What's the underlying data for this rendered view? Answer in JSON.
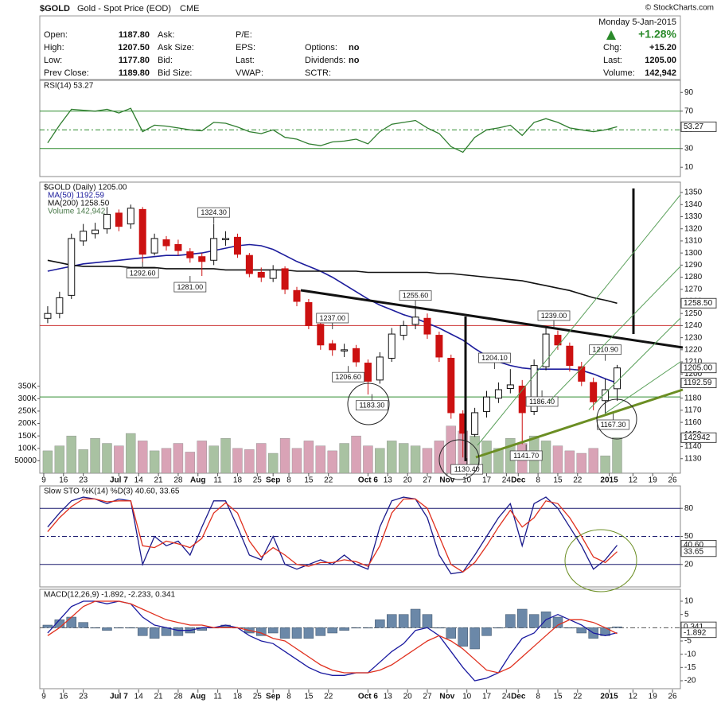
{
  "header": {
    "symbol": "$GOLD",
    "name": "Gold - Spot Price (EOD)",
    "exchange": "CME",
    "copyright": "© StockCharts.com",
    "date": "Monday  5-Jan-2015",
    "change_pct": "+1.28%",
    "quote": [
      {
        "label": "Open:",
        "value": "1187.80"
      },
      {
        "label": "High:",
        "value": "1207.50"
      },
      {
        "label": "Low:",
        "value": "1177.80"
      },
      {
        "label": "Prev Close:",
        "value": "1189.80"
      }
    ],
    "labels2": [
      "Ask:",
      "Ask Size:",
      "Bid:",
      "Bid Size:"
    ],
    "labels3": [
      "P/E:",
      "EPS:",
      "Last:",
      "VWAP:"
    ],
    "flags": [
      {
        "label": "Options:",
        "value": "no"
      },
      {
        "label": "Dividends:",
        "value": "no"
      },
      {
        "label": "SCTR:"
      }
    ],
    "summary": [
      {
        "label": "Chg:",
        "value": "+15.20"
      },
      {
        "label": "Last:",
        "value": "1205.00"
      },
      {
        "label": "Volume:",
        "value": "142,942"
      }
    ]
  },
  "chart_data": [
    {
      "type": "line",
      "title": "RSI(14) 53.27",
      "ylim": [
        0,
        103
      ],
      "yticks": [
        10,
        30,
        50,
        70,
        90
      ],
      "hlines": [
        {
          "value": 70,
          "color": "#2e8b2e"
        },
        {
          "value": 30,
          "color": "#2e8b2e"
        },
        {
          "value": 50,
          "color": "#2e8b2e",
          "dash": true
        }
      ],
      "series": [
        {
          "color": "#2e7d2e",
          "values": [
            36,
            55,
            72,
            71,
            70,
            72,
            68,
            73,
            48,
            55,
            54,
            52,
            50,
            49,
            58,
            57,
            53,
            48,
            46,
            50,
            42,
            40,
            35,
            33,
            37,
            38,
            40,
            35,
            48,
            56,
            58,
            60,
            52,
            46,
            32,
            26,
            42,
            50,
            52,
            55,
            44,
            58,
            62,
            58,
            52,
            50,
            48,
            50,
            53.27
          ]
        }
      ],
      "last_labels": [
        {
          "value": 53.27,
          "label": "53.27"
        }
      ]
    },
    {
      "type": "candlestick",
      "title": "$GOLD (Daily) 1205.00",
      "volume_name": "Volume 142,942",
      "xlim": [
        -1,
        161
      ],
      "xticks": [
        {
          "value": 0,
          "label": "9"
        },
        {
          "value": 5,
          "label": "16"
        },
        {
          "value": 10,
          "label": "23"
        },
        {
          "value": 19,
          "label": "Jul 7"
        },
        {
          "value": 24,
          "label": "14"
        },
        {
          "value": 29,
          "label": "21"
        },
        {
          "value": 34,
          "label": "28"
        },
        {
          "value": 39,
          "label": "Aug"
        },
        {
          "value": 44,
          "label": "11"
        },
        {
          "value": 49,
          "label": "18"
        },
        {
          "value": 54,
          "label": "25"
        },
        {
          "value": 58,
          "label": "Sep"
        },
        {
          "value": 62,
          "label": "8"
        },
        {
          "value": 67,
          "label": "15"
        },
        {
          "value": 72,
          "label": "22"
        },
        {
          "value": 82,
          "label": "Oct 6"
        },
        {
          "value": 87,
          "label": "13"
        },
        {
          "value": 92,
          "label": "20"
        },
        {
          "value": 97,
          "label": "27"
        },
        {
          "value": 102,
          "label": "Nov"
        },
        {
          "value": 107,
          "label": "10"
        },
        {
          "value": 112,
          "label": "17"
        },
        {
          "value": 117,
          "label": "24"
        },
        {
          "value": 120,
          "label": "Dec"
        },
        {
          "value": 125,
          "label": "8"
        },
        {
          "value": 130,
          "label": "15"
        },
        {
          "value": 135,
          "label": "22"
        },
        {
          "value": 143,
          "label": "2015"
        },
        {
          "value": 149,
          "label": "12"
        },
        {
          "value": 154,
          "label": "19"
        },
        {
          "value": 159,
          "label": "26"
        }
      ],
      "ylim": [
        1118,
        1358.6
      ],
      "yticks": [
        1130,
        1140,
        1150,
        1160,
        1170,
        1180,
        1190,
        1200,
        1210,
        1220,
        1230,
        1240,
        1250,
        1260,
        1270,
        1280,
        1290,
        1300,
        1310,
        1320,
        1330,
        1340,
        1350
      ],
      "x": [
        1,
        4,
        7,
        10,
        13,
        16,
        19,
        22,
        25,
        28,
        31,
        34,
        37,
        40,
        43,
        46,
        49,
        52,
        55,
        58,
        61,
        64,
        67,
        70,
        73,
        76,
        79,
        82,
        85,
        88,
        91,
        94,
        97,
        100,
        103,
        106,
        109,
        112,
        115,
        118,
        121,
        124,
        127,
        130,
        133,
        136,
        139,
        142,
        145
      ],
      "open": [
        1246,
        1250,
        1265,
        1310,
        1316,
        1320,
        1333,
        1324,
        1336,
        1300,
        1311,
        1307,
        1301,
        1297,
        1294,
        1311,
        1313,
        1298,
        1284,
        1279,
        1287,
        1269,
        1259,
        1241,
        1225,
        1219,
        1221,
        1209,
        1195,
        1213,
        1232,
        1241,
        1246,
        1232,
        1213,
        1167,
        1150,
        1169,
        1180,
        1188,
        1190,
        1169,
        1206,
        1232,
        1223,
        1206,
        1193,
        1178,
        1187.8
      ],
      "high": [
        1256,
        1268,
        1316,
        1324,
        1325,
        1338,
        1336,
        1340,
        1338,
        1316,
        1314,
        1311,
        1304,
        1300,
        1324,
        1318,
        1316,
        1300,
        1288,
        1290,
        1289,
        1272,
        1262,
        1245,
        1228,
        1225,
        1224,
        1212,
        1218,
        1238,
        1244,
        1255,
        1250,
        1235,
        1216,
        1170,
        1172,
        1186,
        1193,
        1204,
        1195,
        1212,
        1239,
        1236,
        1226,
        1210,
        1197,
        1196,
        1207.5
      ],
      "low": [
        1242,
        1246,
        1262,
        1306,
        1312,
        1316,
        1318,
        1320,
        1292,
        1298,
        1302,
        1298,
        1292,
        1281,
        1290,
        1306,
        1296,
        1280,
        1276,
        1276,
        1266,
        1256,
        1237,
        1220,
        1215,
        1214,
        1206,
        1183,
        1192,
        1210,
        1228,
        1237,
        1229,
        1210,
        1163,
        1131,
        1148,
        1164,
        1176,
        1184,
        1142,
        1166,
        1203,
        1220,
        1202,
        1190,
        1170,
        1167,
        1177.8
      ],
      "close": [
        1250,
        1263,
        1312,
        1318,
        1319,
        1332,
        1322,
        1337,
        1299,
        1312,
        1306,
        1302,
        1296,
        1293,
        1312,
        1312,
        1299,
        1283,
        1280,
        1286,
        1270,
        1260,
        1240,
        1224,
        1220,
        1220,
        1210,
        1194,
        1214,
        1233,
        1240,
        1247,
        1233,
        1214,
        1168,
        1151,
        1168,
        1181,
        1187,
        1191,
        1168,
        1207,
        1233,
        1224,
        1207,
        1194,
        1177,
        1187,
        1205
      ],
      "up_color": "#111111",
      "down_color": "#cc1111",
      "volume": [
        90000,
        110000,
        150000,
        95000,
        140000,
        120000,
        110000,
        160000,
        130000,
        90000,
        100000,
        120000,
        85000,
        130000,
        110000,
        140000,
        100000,
        95000,
        120000,
        80000,
        140000,
        100000,
        130000,
        110000,
        90000,
        120000,
        150000,
        110000,
        100000,
        130000,
        120000,
        110000,
        100000,
        130000,
        190000,
        170000,
        150000,
        130000,
        100000,
        140000,
        120000,
        150000,
        130000,
        110000,
        90000,
        80000,
        100000,
        70000,
        142942
      ],
      "vlim": [
        0,
        1172000
      ],
      "vticks": [
        50000,
        {
          "value": 100000,
          "label": "100K"
        },
        {
          "value": 150000,
          "label": "150K"
        },
        {
          "value": 200000,
          "label": "200K"
        },
        {
          "value": 250000,
          "label": "250K"
        },
        {
          "value": 300000,
          "label": "300K"
        },
        {
          "value": 350000,
          "label": "350K"
        }
      ],
      "volume_up_color": "#a9c2a2",
      "volume_down_color": "#d9a3b6",
      "series": [
        {
          "name": "MA(50) 1192.59",
          "color": "#1c1c9c",
          "values": [
            1285,
            1287,
            1289,
            1291,
            1292,
            1293,
            1294,
            1295,
            1296,
            1297,
            1298,
            1298,
            1299,
            1300,
            1302,
            1304,
            1306,
            1307,
            1306,
            1303,
            1298,
            1293,
            1289,
            1285,
            1280,
            1274,
            1268,
            1262,
            1257,
            1253,
            1249,
            1246,
            1242,
            1238,
            1233,
            1228,
            1221,
            1215,
            1210,
            1207,
            1205,
            1204,
            1204,
            1204,
            1204,
            1203,
            1200,
            1196,
            1192.59
          ]
        },
        {
          "name": "MA(200) 1258.50",
          "color": "#111111",
          "values": [
            1294,
            1292,
            1290,
            1289,
            1289,
            1289,
            1289,
            1288,
            1288,
            1288,
            1287,
            1287,
            1287,
            1287,
            1287,
            1286,
            1286,
            1286,
            1286,
            1286,
            1286,
            1285,
            1285,
            1285,
            1285,
            1285,
            1285,
            1284,
            1284,
            1284,
            1284,
            1284,
            1284,
            1283,
            1283,
            1282,
            1281,
            1280,
            1279,
            1278,
            1277,
            1275,
            1273,
            1271,
            1269,
            1266,
            1263,
            1261,
            1258.5
          ]
        }
      ],
      "hlines": [
        {
          "value": 1240,
          "color": "#cc3333"
        },
        {
          "value": 1181,
          "color": "#2e8b2e"
        }
      ],
      "annotations": [
        {
          "x": 43,
          "value": 1324.3,
          "label": "1324.30"
        },
        {
          "x": 25,
          "value": 1292.6,
          "label": "1292.60"
        },
        {
          "x": 37,
          "value": 1281,
          "label": "1281.00"
        },
        {
          "x": 73,
          "value": 1237,
          "label": "1237.00"
        },
        {
          "x": 77,
          "value": 1206.6,
          "label": "1206.60"
        },
        {
          "x": 83,
          "value": 1183.3,
          "label": "1183.30"
        },
        {
          "x": 94,
          "value": 1255.6,
          "label": "1255.60"
        },
        {
          "x": 114,
          "value": 1204.1,
          "label": "1204.10"
        },
        {
          "x": 107,
          "value": 1130.4,
          "label": "1130.40"
        },
        {
          "x": 126,
          "value": 1186.4,
          "label": "1186.40"
        },
        {
          "x": 122,
          "value": 1141.7,
          "label": "1141.70"
        },
        {
          "x": 129,
          "value": 1239,
          "label": "1239.00"
        },
        {
          "x": 142,
          "value": 1210.9,
          "label": "1210.90"
        },
        {
          "x": 144,
          "value": 1167.3,
          "label": "1167.30"
        }
      ],
      "last_labels": [
        {
          "value": 1258.5,
          "label": "1258.50"
        },
        {
          "value": 1205,
          "label": "1205.00"
        },
        {
          "value": 1192.59,
          "label": "1192.59"
        }
      ],
      "volume_label": {
        "value": 142942,
        "label": "142942"
      }
    },
    {
      "type": "line",
      "title": "Slow STO %K(14) %D(3) 40.60, 33.65",
      "ylim": [
        -4,
        104
      ],
      "yticks": [
        20,
        50,
        80
      ],
      "hlines": [
        {
          "value": 80,
          "color": "#1a1a6e"
        },
        {
          "value": 20,
          "color": "#1a1a6e"
        },
        {
          "value": 50,
          "color": "#1a1a6e",
          "dash": true
        }
      ],
      "series": [
        {
          "color": "#1a1a8c",
          "values": [
            60,
            75,
            88,
            92,
            90,
            85,
            90,
            88,
            20,
            50,
            40,
            45,
            30,
            60,
            88,
            88,
            60,
            30,
            25,
            50,
            20,
            15,
            20,
            25,
            20,
            30,
            20,
            15,
            60,
            88,
            92,
            90,
            70,
            30,
            10,
            12,
            30,
            50,
            70,
            85,
            40,
            85,
            92,
            80,
            60,
            40,
            15,
            25,
            40.6
          ]
        },
        {
          "color": "#e0301e",
          "values": [
            55,
            70,
            82,
            90,
            90,
            87,
            88,
            88,
            40,
            38,
            45,
            42,
            38,
            48,
            75,
            86,
            75,
            45,
            28,
            38,
            30,
            20,
            18,
            22,
            22,
            25,
            23,
            18,
            40,
            75,
            90,
            90,
            80,
            50,
            20,
            12,
            22,
            40,
            60,
            78,
            60,
            70,
            88,
            85,
            70,
            50,
            28,
            22,
            33.65
          ]
        }
      ],
      "last_labels": [
        {
          "value": 40.6,
          "label": "40.60"
        },
        {
          "value": 33.65,
          "label": "33.65"
        }
      ]
    },
    {
      "type": "line",
      "title": "MACD(12,26,9) -1.892, -2.233, 0.341",
      "ylim": [
        -23,
        14.5
      ],
      "yticks": [
        10,
        5,
        0,
        -5,
        -10,
        -15,
        -20
      ],
      "hlines": [
        {
          "value": 0,
          "color": "#555555",
          "dash": true
        }
      ],
      "histogram": {
        "color": "#6b88a8",
        "values": [
          1,
          3,
          4,
          2,
          0,
          -1,
          0,
          0,
          -3,
          -4,
          -3,
          -3,
          -2,
          -1,
          0,
          1,
          0,
          -2,
          -3,
          -2,
          -4,
          -4,
          -4,
          -3,
          -2,
          -1,
          0,
          0,
          3,
          5,
          5,
          7,
          5,
          0,
          -4,
          -7,
          -8,
          -3,
          0,
          5,
          7,
          5,
          6,
          4,
          0,
          -2,
          -4,
          -3,
          0.341
        ]
      },
      "series": [
        {
          "color": "#1a1aa0",
          "values": [
            -2,
            3,
            8,
            10,
            10,
            9,
            10,
            9,
            4,
            1,
            0,
            -1,
            -1,
            0,
            0,
            1,
            0,
            -3,
            -5,
            -6,
            -9,
            -12,
            -15,
            -17,
            -18,
            -18,
            -17,
            -17,
            -13,
            -9,
            -6,
            -1,
            0,
            -3,
            -9,
            -15,
            -20,
            -19,
            -17,
            -10,
            -4,
            -2,
            3,
            5,
            3,
            1,
            -2,
            -3,
            -1.892
          ]
        },
        {
          "color": "#e0301e",
          "values": [
            -3,
            0,
            4,
            8,
            10,
            10,
            10,
            9,
            7,
            5,
            3,
            2,
            1,
            1,
            0,
            0,
            0,
            -1,
            -2,
            -4,
            -5,
            -8,
            -11,
            -14,
            -16,
            -17,
            -17,
            -17,
            -16,
            -14,
            -11,
            -8,
            -5,
            -3,
            -5,
            -8,
            -12,
            -16,
            -17,
            -15,
            -11,
            -7,
            -3,
            1,
            3,
            3,
            2,
            0,
            -2.233
          ]
        }
      ],
      "last_labels": [
        {
          "value": 0.341,
          "label": "0.341"
        },
        {
          "value": -1.892,
          "label": "-1.892"
        }
      ]
    }
  ]
}
